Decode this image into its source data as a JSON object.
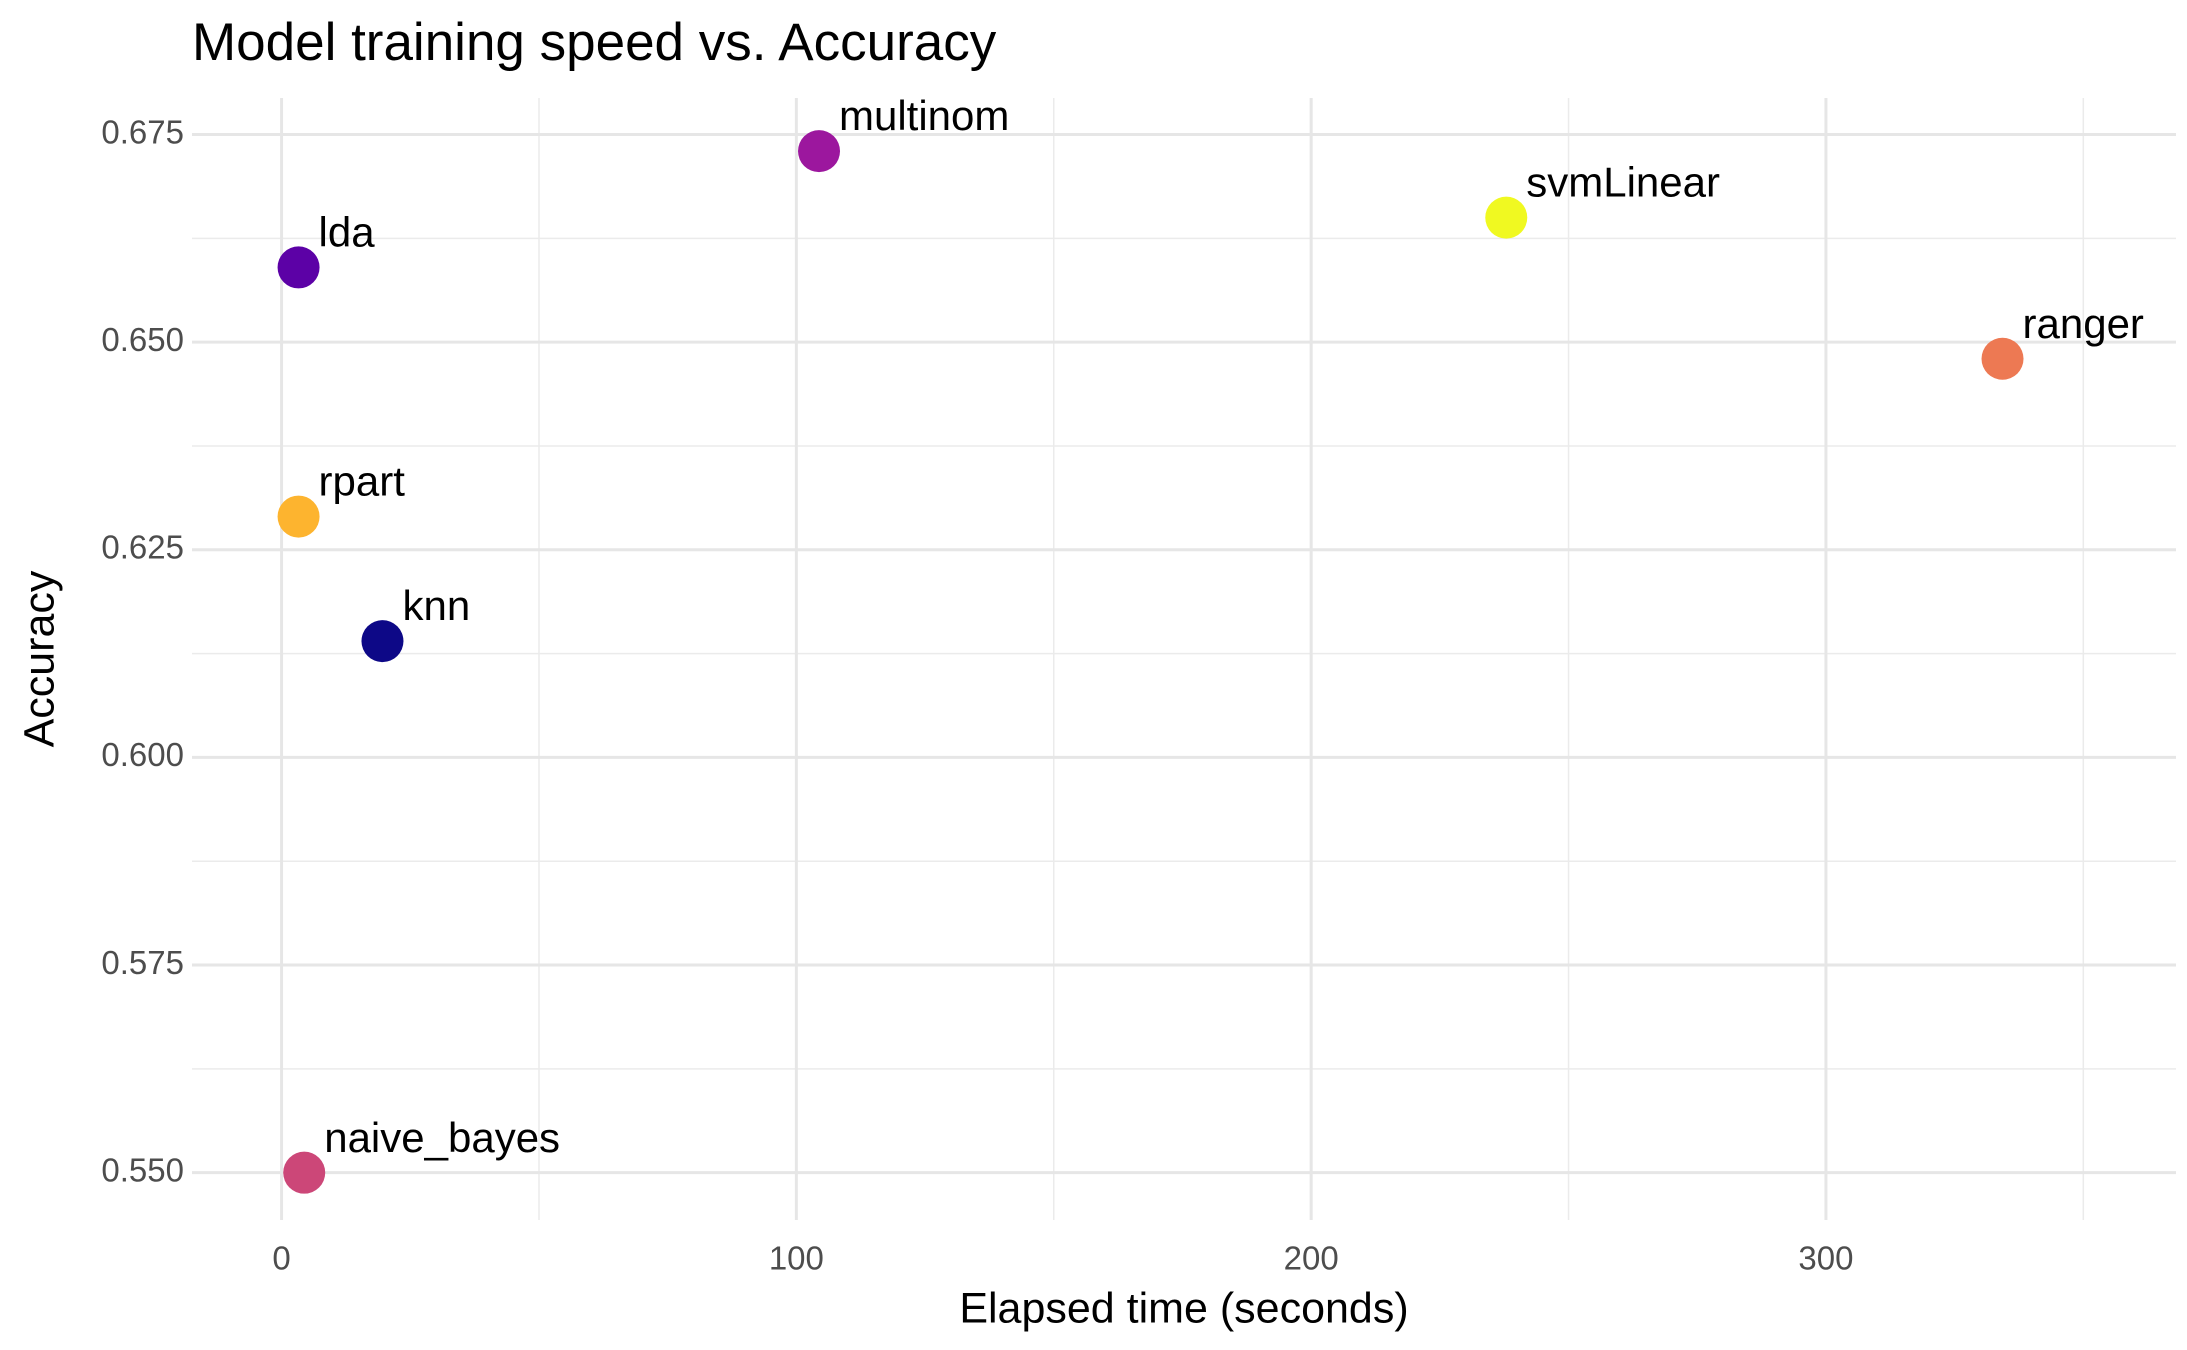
{
  "chart_data": {
    "type": "scatter",
    "title": "Model training speed vs. Accuracy",
    "x_label": "Elapsed time (seconds)",
    "y_label": "Accuracy",
    "series": [
      {
        "name": "lda",
        "color": "#5c01a6",
        "x": [
          3.3
        ],
        "values": [
          0.659
        ]
      },
      {
        "name": "multinom",
        "color": "#9c179e",
        "x": [
          104.4
        ],
        "values": [
          0.673
        ]
      },
      {
        "name": "svmLinear",
        "color": "#f0f921",
        "x": [
          237.9
        ],
        "values": [
          0.665
        ]
      },
      {
        "name": "ranger",
        "color": "#ed7953",
        "x": [
          334.3
        ],
        "values": [
          0.648
        ]
      },
      {
        "name": "rpart",
        "color": "#fdb42f",
        "x": [
          3.3
        ],
        "values": [
          0.629
        ]
      },
      {
        "name": "knn",
        "color": "#0d0887",
        "x": [
          19.6
        ],
        "values": [
          0.614
        ]
      },
      {
        "name": "naive_bayes",
        "color": "#cc4778",
        "x": [
          4.4
        ],
        "values": [
          0.55
        ]
      }
    ],
    "xlim": [
      -17.4,
      368
    ],
    "xticks": [
      0,
      100,
      200,
      300
    ],
    "ylim": [
      0.5443,
      0.6794
    ],
    "yticks": [
      {
        "value": 0.55,
        "label": "0.550"
      },
      0.575,
      {
        "value": 0.6,
        "label": "0.600"
      },
      0.625,
      {
        "value": 0.65,
        "label": "0.650"
      },
      0.675
    ],
    "grid": true
  }
}
